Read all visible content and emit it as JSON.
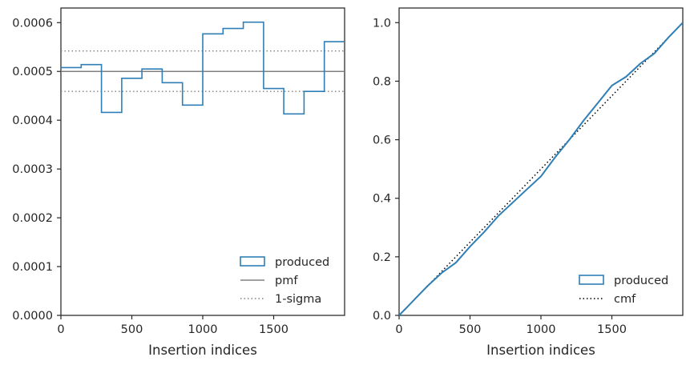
{
  "chart_data": [
    {
      "type": "line",
      "subtype": "step-histogram",
      "xlabel": "Insertion indices",
      "ylabel": "",
      "xlim": [
        0,
        2000
      ],
      "ylim": [
        0,
        0.00063
      ],
      "xticks": [
        0,
        500,
        1000,
        1500
      ],
      "yticks": [
        0.0,
        0.0001,
        0.0002,
        0.0003,
        0.0004,
        0.0005,
        0.0006
      ],
      "ytick_labels": [
        "0.0000",
        "0.0001",
        "0.0002",
        "0.0003",
        "0.0004",
        "0.0005",
        "0.0006"
      ],
      "xtick_labels": [
        "0",
        "500",
        "1000",
        "1500"
      ],
      "grid": false,
      "legend_position": "lower-right",
      "series": [
        {
          "name": "produced",
          "style": "step",
          "color": "#2f7fb6",
          "bin_edges": [
            0,
            143,
            286,
            429,
            571,
            714,
            857,
            1000,
            1143,
            1286,
            1429,
            1571,
            1714,
            1857,
            2000
          ],
          "values": [
            0.000508,
            0.000514,
            0.000416,
            0.000486,
            0.000505,
            0.000477,
            0.000431,
            0.000577,
            0.000588,
            0.000601,
            0.000465,
            0.000413,
            0.000459,
            0.000561
          ]
        },
        {
          "name": "pmf",
          "style": "hline",
          "color": "#808080",
          "y": 0.0005
        },
        {
          "name": "1-sigma",
          "style": "hline-dotted",
          "color": "#808080",
          "y": [
            0.000542,
            0.000459
          ]
        }
      ],
      "legend": [
        "produced",
        "pmf",
        "1-sigma"
      ]
    },
    {
      "type": "line",
      "xlabel": "Insertion indices",
      "ylabel": "",
      "xlim": [
        0,
        2000
      ],
      "ylim": [
        0,
        1.05
      ],
      "xticks": [
        0,
        500,
        1000,
        1500
      ],
      "yticks": [
        0.0,
        0.2,
        0.4,
        0.6,
        0.8,
        1.0
      ],
      "ytick_labels": [
        "0.0",
        "0.2",
        "0.4",
        "0.6",
        "0.8",
        "1.0"
      ],
      "xtick_labels": [
        "0",
        "500",
        "1000",
        "1500"
      ],
      "grid": false,
      "legend_position": "lower-right",
      "series": [
        {
          "name": "produced",
          "style": "solid",
          "color": "#2f7fb6",
          "x": [
            0,
            100,
            200,
            300,
            400,
            500,
            600,
            700,
            800,
            900,
            1000,
            1100,
            1200,
            1300,
            1400,
            1500,
            1600,
            1700,
            1800,
            1900,
            2000
          ],
          "y": [
            0.0,
            0.05,
            0.1,
            0.145,
            0.18,
            0.235,
            0.285,
            0.34,
            0.385,
            0.43,
            0.475,
            0.54,
            0.6,
            0.665,
            0.725,
            0.785,
            0.815,
            0.86,
            0.895,
            0.95,
            1.0
          ]
        },
        {
          "name": "cmf",
          "style": "dotted",
          "color": "#000000",
          "x": [
            0,
            2000
          ],
          "y": [
            0.0,
            1.0
          ]
        }
      ],
      "legend": [
        "produced",
        "cmf"
      ]
    }
  ]
}
